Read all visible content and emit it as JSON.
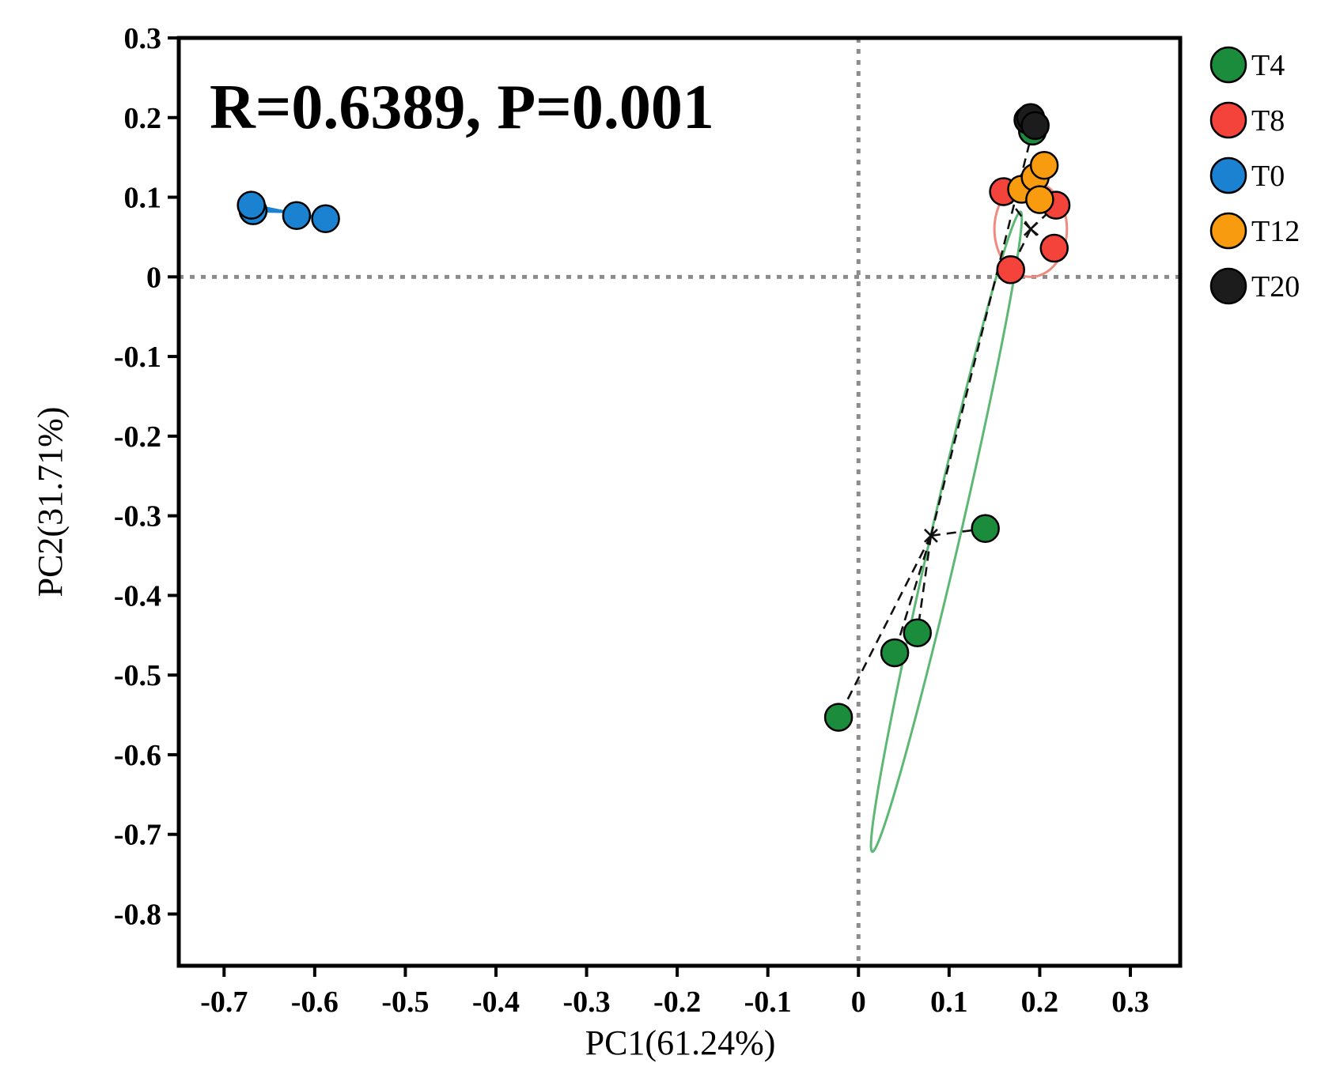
{
  "chart_data": {
    "type": "scatter",
    "title": "",
    "annotation": "R=0.6389, P=0.001",
    "xlabel": "PC1(61.24%)",
    "ylabel": "PC2(31.71%)",
    "xlim": [
      -0.75,
      0.355
    ],
    "ylim": [
      -0.865,
      0.3
    ],
    "x_ticks": [
      -0.7,
      -0.6,
      -0.5,
      -0.4,
      -0.3,
      -0.2,
      -0.1,
      0,
      0.1,
      0.2,
      0.3
    ],
    "x_tick_labels": [
      "-0.7",
      "-0.6",
      "-0.5",
      "-0.4",
      "-0.3",
      "-0.2",
      "-0.1",
      "0",
      "0.1",
      "0.2",
      "0.3"
    ],
    "y_ticks": [
      0.3,
      0.2,
      0.1,
      0,
      -0.1,
      -0.2,
      -0.3,
      -0.4,
      -0.5,
      -0.6,
      -0.7,
      -0.8
    ],
    "y_tick_labels": [
      "0.3",
      "0.2",
      "0.1",
      "0",
      "-0.1",
      "-0.2",
      "-0.3",
      "-0.4",
      "-0.5",
      "-0.6",
      "-0.7",
      "-0.8"
    ],
    "reference_lines": {
      "x": 0,
      "y": 0
    },
    "legend_position": "right",
    "series": [
      {
        "name": "T4",
        "color": "#1a8c3c",
        "centroid": [
          0.08,
          -0.325
        ],
        "points": [
          [
            -0.022,
            -0.553
          ],
          [
            0.04,
            -0.472
          ],
          [
            0.065,
            -0.447
          ],
          [
            0.14,
            -0.316
          ],
          [
            0.192,
            0.183
          ]
        ],
        "ellipse": {
          "center": [
            0.097,
            -0.32
          ],
          "rx": 0.41,
          "ry": 0.016,
          "angle_deg": 78.5,
          "color": "#5cb874"
        }
      },
      {
        "name": "T8",
        "color": "#f4433a",
        "centroid": [
          0.19,
          0.06
        ],
        "points": [
          [
            0.16,
            0.107
          ],
          [
            0.168,
            0.009
          ],
          [
            0.216,
            0.036
          ],
          [
            0.218,
            0.09
          ]
        ],
        "ellipse": {
          "center": [
            0.19,
            0.06
          ],
          "rx": 0.04,
          "ry": 0.06,
          "angle_deg": 0,
          "color": "#f08a80"
        }
      },
      {
        "name": "T0",
        "color": "#1b82d2",
        "centroid": [
          -0.635,
          0.082
        ],
        "points": [
          [
            -0.668,
            0.083
          ],
          [
            -0.67,
            0.09
          ],
          [
            -0.62,
            0.077
          ],
          [
            -0.588,
            0.073
          ]
        ],
        "ellipse": null
      },
      {
        "name": "T12",
        "color": "#f99b0e",
        "centroid": [
          0.193,
          0.12
        ],
        "points": [
          [
            0.18,
            0.11
          ],
          [
            0.195,
            0.125
          ],
          [
            0.2,
            0.097
          ],
          [
            0.205,
            0.14
          ]
        ],
        "ellipse": null
      },
      {
        "name": "T20",
        "color": "#1c1c1c",
        "centroid": [
          0.19,
          0.196
        ],
        "points": [
          [
            0.187,
            0.197
          ],
          [
            0.19,
            0.2
          ],
          [
            0.195,
            0.19
          ]
        ],
        "ellipse": null
      }
    ]
  }
}
